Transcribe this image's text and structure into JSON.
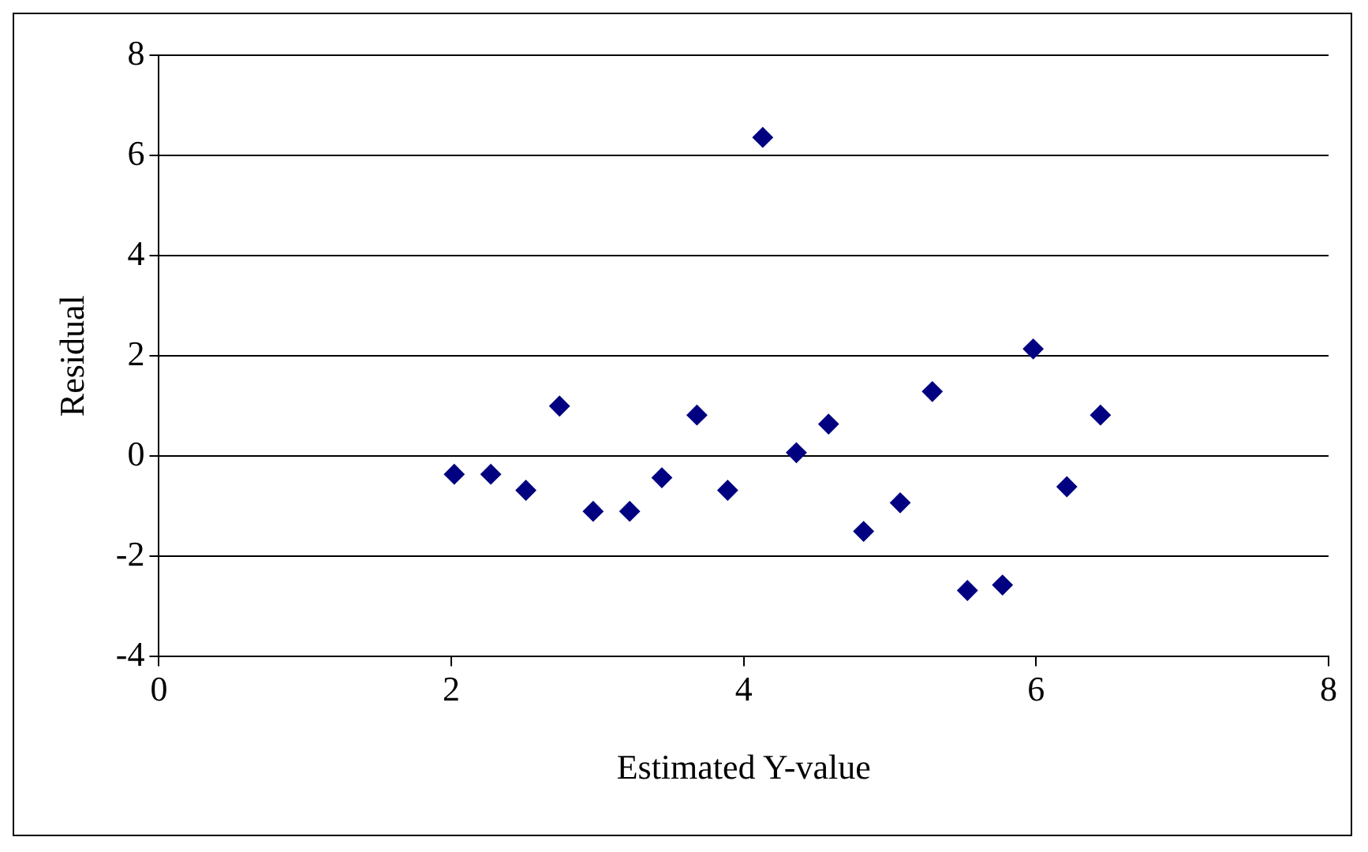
{
  "chart_data": {
    "type": "scatter",
    "xlabel": "Estimated Y-value",
    "ylabel": "Residual",
    "x": [
      2.02,
      2.27,
      2.51,
      2.74,
      2.97,
      3.22,
      3.44,
      3.68,
      3.89,
      4.13,
      4.36,
      4.58,
      4.82,
      5.07,
      5.29,
      5.53,
      5.77,
      5.98,
      6.21,
      6.44
    ],
    "series": [
      {
        "color": "#000080",
        "values": [
          -0.36,
          -0.36,
          -0.68,
          1.0,
          -1.1,
          -1.1,
          -0.43,
          0.82,
          -0.68,
          6.36,
          0.07,
          0.64,
          -1.5,
          -0.93,
          1.29,
          -2.68,
          -2.57,
          2.14,
          -0.61,
          0.82
        ]
      }
    ],
    "xlim": [
      0,
      8
    ],
    "xticks": [
      0,
      2,
      4,
      6,
      8
    ],
    "ylim": [
      -4,
      8
    ],
    "yticks": [
      -4,
      -2,
      0,
      2,
      4,
      6,
      8
    ],
    "grid": "y",
    "marker": "diamond"
  }
}
